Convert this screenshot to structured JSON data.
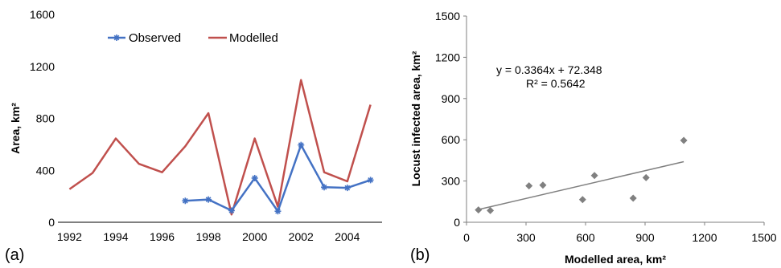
{
  "chart_data": [
    {
      "type": "line",
      "panel_label": "(a)",
      "xlabel": "",
      "ylabel": "Area, km²",
      "xlim": [
        1991.5,
        2005.5
      ],
      "ylim": [
        0,
        1600
      ],
      "xticks": [
        "1992",
        "1994",
        "1996",
        "1998",
        "2000",
        "2002",
        "2004"
      ],
      "yticks": [
        "0",
        "400",
        "800",
        "1200",
        "1600"
      ],
      "legend_position": "top",
      "grid": false,
      "series": [
        {
          "name": "Observed",
          "color": "#4472c4",
          "marker": "star",
          "x": [
            1997,
            1998,
            1999,
            2000,
            2001,
            2002,
            2003,
            2004,
            2005
          ],
          "y": [
            165,
            175,
            90,
            340,
            85,
            595,
            270,
            265,
            325
          ]
        },
        {
          "name": "Modelled",
          "color": "#c0504d",
          "marker": "none",
          "x": [
            1992,
            1993,
            1994,
            1995,
            1996,
            1997,
            1998,
            1999,
            2000,
            2001,
            2002,
            2003,
            2004,
            2005
          ],
          "y": [
            255,
            380,
            645,
            450,
            385,
            585,
            840,
            60,
            645,
            120,
            1095,
            385,
            315,
            905
          ]
        }
      ]
    },
    {
      "type": "scatter",
      "panel_label": "(b)",
      "xlabel": "Modelled area, km²",
      "ylabel": "Locust infected area, km²",
      "xlim": [
        0,
        1500
      ],
      "ylim": [
        0,
        1500
      ],
      "xticks": [
        "0",
        "300",
        "600",
        "900",
        "1200",
        "1500"
      ],
      "yticks": [
        "0",
        "300",
        "600",
        "900",
        "1200",
        "1500"
      ],
      "grid": false,
      "point_color": "#808080",
      "trend_color": "#808080",
      "points": {
        "x": [
          60,
          120,
          315,
          385,
          585,
          645,
          840,
          905,
          1095
        ],
        "y": [
          90,
          85,
          265,
          270,
          165,
          340,
          175,
          325,
          595
        ]
      },
      "trendline": {
        "slope": 0.3364,
        "intercept": 72.348,
        "x_range": [
          60,
          1095
        ]
      },
      "equation": "y = 0.3364x + 72.348",
      "r_squared": "R² = 0.5642"
    }
  ]
}
